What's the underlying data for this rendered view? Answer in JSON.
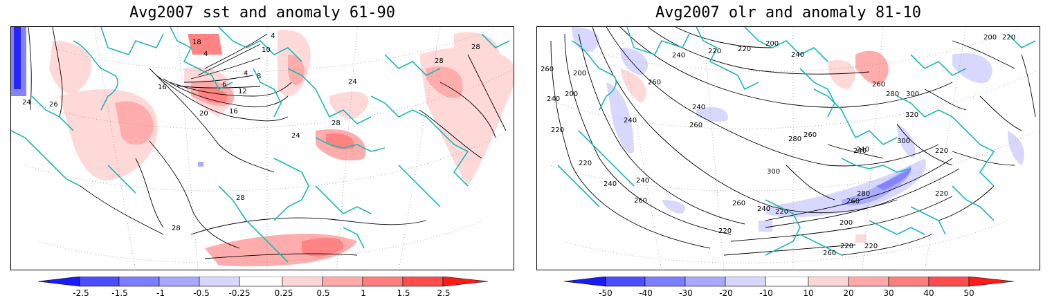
{
  "left_panel": {
    "title": "Avg2007 sst and anomaly 61-90",
    "contour_labels": [
      "24",
      "26",
      "28",
      "20",
      "16",
      "12",
      "8",
      "6",
      "4",
      "10",
      "18",
      "16",
      "24",
      "28",
      "24",
      "28",
      "28",
      "4",
      "4",
      "28"
    ],
    "colorbar": {
      "labels": [
        "-2.5",
        "-1.5",
        "-1",
        "-0.5",
        "-0.25",
        "0.25",
        "0.5",
        "1",
        "1.5",
        "2.5"
      ],
      "colors": [
        "#1a1aff",
        "#4d4dff",
        "#7d7dff",
        "#a8a8ff",
        "#d6d6ff",
        "#ffffff",
        "#ffd6d6",
        "#ffa8a8",
        "#ff7d7d",
        "#ff4d4d",
        "#ff1a1a"
      ]
    }
  },
  "right_panel": {
    "title": "Avg2007 olr and anomaly 81-10",
    "contour_labels": [
      "260",
      "200",
      "240",
      "220",
      "240",
      "220",
      "200",
      "220",
      "260",
      "240",
      "220",
      "200",
      "240",
      "200",
      "220",
      "260",
      "280",
      "300",
      "320",
      "240",
      "260",
      "280",
      "260",
      "300",
      "240",
      "260",
      "280",
      "260",
      "240",
      "220",
      "200",
      "240",
      "220",
      "260",
      "220",
      "220",
      "240",
      "260",
      "240",
      "220",
      "220",
      "300"
    ],
    "colorbar": {
      "labels": [
        "-50",
        "-40",
        "-30",
        "-20",
        "-10",
        "10",
        "20",
        "30",
        "40",
        "50"
      ],
      "colors": [
        "#1a1aff",
        "#4d4dff",
        "#7d7dff",
        "#a8a8ff",
        "#d6d6ff",
        "#ffffff",
        "#ffd6d6",
        "#ffa8a8",
        "#ff7d7d",
        "#ff4d4d",
        "#ff1a1a"
      ]
    }
  },
  "style": {
    "coast_color": "#1ab8b8",
    "contour_color": "#000000",
    "grid_color": "#999999"
  }
}
